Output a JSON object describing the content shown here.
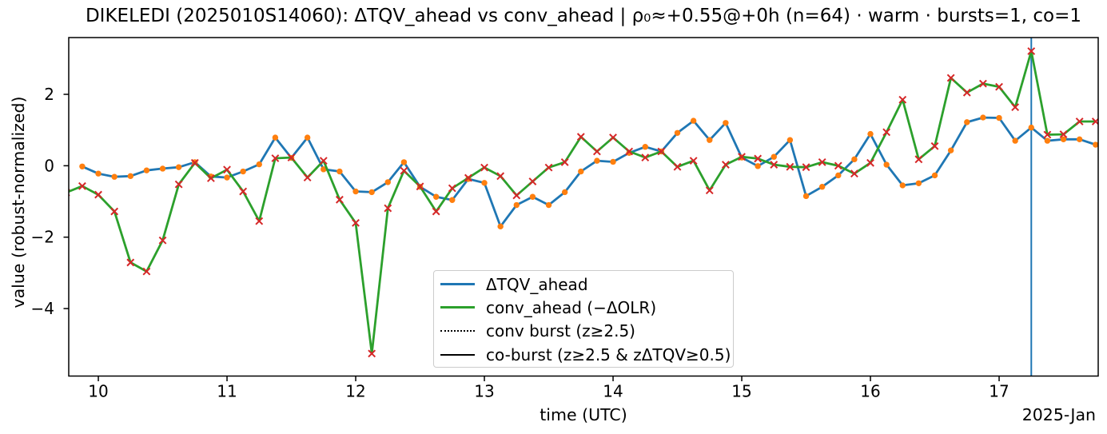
{
  "title": "DIKELEDI (2025010S14060): ΔTQV_ahead vs conv_ahead | ρ₀≈+0.55@+0h (n=64) · warm · bursts=1, co=1",
  "axes": {
    "xlabel": "time (UTC)",
    "ylabel": "value (robust-normalized)",
    "x_offset_label": "2025-Jan"
  },
  "legend": {
    "entries": [
      {
        "label": "ΔTQV_ahead",
        "color": "#1f77b4",
        "dash": "solid",
        "lw": 3.2
      },
      {
        "label": "conv_ahead (−ΔOLR)",
        "color": "#2ca02c",
        "dash": "solid",
        "lw": 3.2
      },
      {
        "label": "conv burst (z≥2.5)",
        "color": "#000000",
        "dash": "dotted",
        "lw": 2
      },
      {
        "label": "co-burst (z≥2.5 & zΔTQV≥0.5)",
        "color": "#000000",
        "dash": "solid",
        "lw": 2.2
      }
    ]
  },
  "chart_data": {
    "type": "line",
    "title": "DIKELEDI (2025010S14060): ΔTQV_ahead vs conv_ahead | ρ₀≈+0.55@+0h (n=64) · warm · bursts=1, co=1",
    "xlabel": "time (UTC)",
    "ylabel": "value (robust-normalized)",
    "x_axis_date_label": "2025-Jan",
    "xlim": [
      9.77,
      17.77
    ],
    "ylim": [
      -5.89,
      3.59
    ],
    "x_ticks": [
      10,
      11,
      12,
      13,
      14,
      15,
      16,
      17
    ],
    "x_tick_labels": [
      "10",
      "11",
      "12",
      "13",
      "14",
      "15",
      "16",
      "17"
    ],
    "y_ticks": [
      2,
      0,
      -2,
      -4
    ],
    "y_tick_labels": [
      "2",
      "0",
      "−2",
      "−4"
    ],
    "grid": false,
    "legend_position": "lower-center",
    "x": [
      9.75,
      9.875,
      10.0,
      10.125,
      10.25,
      10.375,
      10.5,
      10.625,
      10.75,
      10.875,
      11.0,
      11.125,
      11.25,
      11.375,
      11.5,
      11.625,
      11.75,
      11.875,
      12.0,
      12.125,
      12.25,
      12.375,
      12.5,
      12.625,
      12.75,
      12.875,
      13.0,
      13.125,
      13.25,
      13.375,
      13.5,
      13.625,
      13.75,
      13.875,
      14.0,
      14.125,
      14.25,
      14.375,
      14.5,
      14.625,
      14.75,
      14.875,
      15.0,
      15.125,
      15.25,
      15.375,
      15.5,
      15.625,
      15.75,
      15.875,
      16.0,
      16.125,
      16.25,
      16.375,
      16.5,
      16.625,
      16.75,
      16.875,
      17.0,
      17.125,
      17.25,
      17.375,
      17.5,
      17.625,
      17.75
    ],
    "series": [
      {
        "name": "ΔTQV_ahead",
        "line_color": "#1f77b4",
        "marker": "circle",
        "marker_color": "#ff7f0e",
        "values": [
          null,
          -0.02,
          -0.22,
          -0.31,
          -0.29,
          -0.13,
          -0.08,
          -0.04,
          0.1,
          -0.3,
          -0.33,
          -0.16,
          0.04,
          0.79,
          0.22,
          0.79,
          -0.1,
          -0.16,
          -0.72,
          -0.74,
          -0.46,
          0.1,
          -0.59,
          -0.87,
          -0.96,
          -0.37,
          -0.48,
          -1.7,
          -1.1,
          -0.87,
          -1.1,
          -0.74,
          -0.16,
          0.14,
          0.11,
          0.36,
          0.53,
          0.4,
          0.92,
          1.26,
          0.72,
          1.2,
          0.23,
          -0.01,
          0.25,
          0.72,
          -0.85,
          -0.59,
          -0.27,
          0.18,
          0.89,
          0.03,
          -0.55,
          -0.49,
          -0.27,
          0.43,
          1.22,
          1.35,
          1.34,
          0.7,
          1.07,
          0.7,
          0.74,
          0.74,
          0.59
        ]
      },
      {
        "name": "conv_ahead (−ΔOLR)",
        "line_color": "#2ca02c",
        "marker": "x",
        "marker_color": "#d62728",
        "values": [
          -0.75,
          -0.57,
          -0.81,
          -1.28,
          -2.71,
          -2.96,
          -2.09,
          -0.52,
          0.08,
          -0.35,
          -0.11,
          -0.72,
          -1.55,
          0.21,
          0.23,
          -0.33,
          0.14,
          -0.95,
          -1.6,
          -5.26,
          -1.19,
          -0.14,
          -0.58,
          -1.28,
          -0.63,
          -0.34,
          -0.05,
          -0.29,
          -0.83,
          -0.44,
          -0.05,
          0.1,
          0.81,
          0.4,
          0.79,
          0.4,
          0.23,
          0.4,
          -0.03,
          0.14,
          -0.69,
          0.03,
          0.25,
          0.2,
          0.03,
          -0.03,
          -0.04,
          0.1,
          0.0,
          -0.22,
          0.08,
          0.94,
          1.85,
          0.18,
          0.55,
          2.46,
          2.05,
          2.3,
          2.21,
          1.64,
          3.21,
          0.87,
          0.88,
          1.24,
          1.24
        ]
      }
    ],
    "vline": {
      "x": 17.25,
      "color": "#1f77b4",
      "meaning": "co-burst"
    }
  }
}
